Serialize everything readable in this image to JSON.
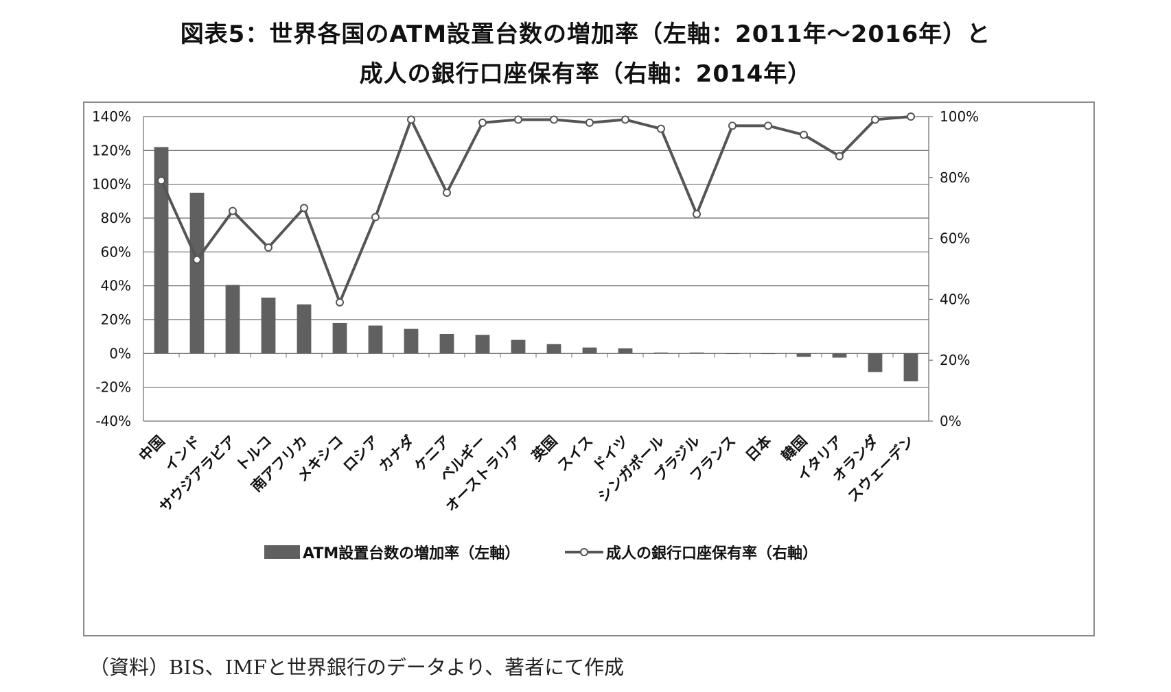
{
  "title_line1": "図表5：世界各国のATM設置台数の増加率（左軸：2011年～2016年）と",
  "title_line2": "成人の銀行口座保有率（右軸：2014年）",
  "source": "（資料）BIS、IMFと世界銀行のデータより、著者にて作成",
  "colors": {
    "bar": "#606060",
    "line": "#555555",
    "grid": "#6a6a6a",
    "marker_fill": "#ffffff"
  },
  "chart_data": {
    "type": "bar",
    "categories": [
      "中国",
      "インド",
      "サウジアラビア",
      "トルコ",
      "南アフリカ",
      "メキシコ",
      "ロシア",
      "カナダ",
      "ケニア",
      "ベルギー",
      "オーストラリア",
      "英国",
      "スイス",
      "ドイツ",
      "シンガポール",
      "ブラジル",
      "フランス",
      "日本",
      "韓国",
      "イタリア",
      "オランダ",
      "スウェーデン"
    ],
    "series": [
      {
        "name": "ATM設置台数の増加率（左軸）",
        "type": "bar",
        "axis": "left",
        "values": [
          122,
          95,
          40.5,
          33,
          29,
          18,
          16.5,
          14.5,
          11.5,
          11,
          8,
          5.5,
          3.5,
          3,
          0.5,
          0.5,
          0,
          0,
          -2,
          -2.5,
          -11,
          -16.5
        ]
      },
      {
        "name": "成人の銀行口座保有率（右軸）",
        "type": "line",
        "axis": "right",
        "values": [
          79,
          53,
          69,
          57,
          70,
          39,
          67,
          99,
          75,
          98,
          99,
          99,
          98,
          99,
          96,
          68,
          97,
          97,
          94,
          87,
          99,
          100
        ]
      }
    ],
    "y_left": {
      "min": -40,
      "max": 140,
      "step": 20,
      "tick_labels": [
        "-40%",
        "-20%",
        "0%",
        "20%",
        "40%",
        "60%",
        "80%",
        "100%",
        "120%",
        "140%"
      ]
    },
    "y_right": {
      "min": 0,
      "max": 100,
      "step": 20,
      "tick_labels": [
        "0%",
        "20%",
        "40%",
        "60%",
        "80%",
        "100%"
      ]
    },
    "grid": true,
    "legend_position": "bottom"
  }
}
